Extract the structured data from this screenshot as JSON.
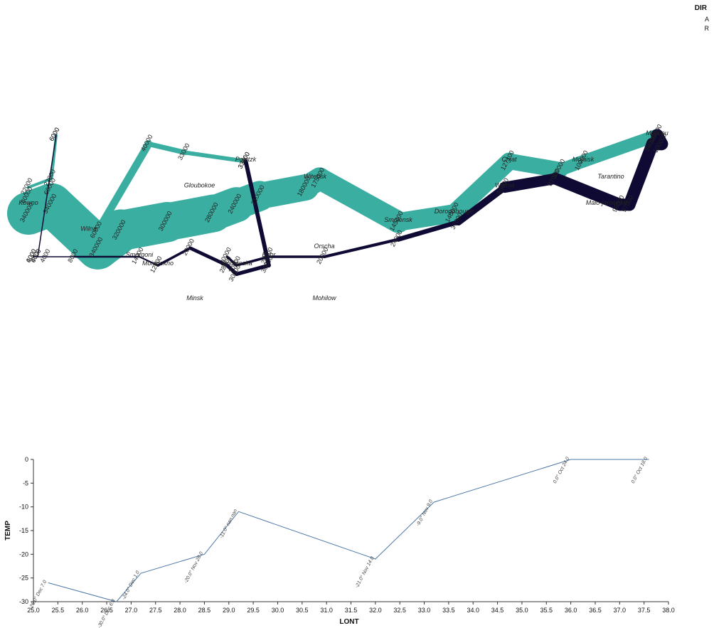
{
  "chart_data": [
    {
      "type": "flow-map",
      "legend": {
        "title": "DIR",
        "items": [
          {
            "label": "A",
            "color": "#3aaea1"
          },
          {
            "label": "R",
            "color": "#0e0a33"
          }
        ]
      },
      "colors": {
        "A": "#3aaea1",
        "R": "#0e0a33"
      },
      "lon_range": [
        24.0,
        37.8
      ],
      "lat_range": [
        53.8,
        55.9
      ],
      "troops": [
        {
          "lon": 24.0,
          "lat": 54.9,
          "survivors": 340000,
          "dir": "A",
          "group": 1
        },
        {
          "lon": 24.5,
          "lat": 55.0,
          "survivors": 340000,
          "dir": "A",
          "group": 1
        },
        {
          "lon": 25.5,
          "lat": 54.5,
          "survivors": 340000,
          "dir": "A",
          "group": 1
        },
        {
          "lon": 26.0,
          "lat": 54.7,
          "survivors": 320000,
          "dir": "A",
          "group": 1
        },
        {
          "lon": 27.0,
          "lat": 54.8,
          "survivors": 300000,
          "dir": "A",
          "group": 1
        },
        {
          "lon": 28.0,
          "lat": 54.9,
          "survivors": 280000,
          "dir": "A",
          "group": 1
        },
        {
          "lon": 28.5,
          "lat": 55.0,
          "survivors": 240000,
          "dir": "A",
          "group": 1
        },
        {
          "lon": 29.0,
          "lat": 55.1,
          "survivors": 210000,
          "dir": "A",
          "group": 1
        },
        {
          "lon": 30.0,
          "lat": 55.2,
          "survivors": 180000,
          "dir": "A",
          "group": 1
        },
        {
          "lon": 30.3,
          "lat": 55.3,
          "survivors": 175000,
          "dir": "A",
          "group": 1
        },
        {
          "lon": 32.0,
          "lat": 54.8,
          "survivors": 145000,
          "dir": "A",
          "group": 1
        },
        {
          "lon": 33.2,
          "lat": 54.9,
          "survivors": 140000,
          "dir": "A",
          "group": 1
        },
        {
          "lon": 34.4,
          "lat": 55.5,
          "survivors": 127100,
          "dir": "A",
          "group": 1
        },
        {
          "lon": 35.5,
          "lat": 55.4,
          "survivors": 100000,
          "dir": "A",
          "group": 1
        },
        {
          "lon": 36.0,
          "lat": 55.5,
          "survivors": 100000,
          "dir": "A",
          "group": 1
        },
        {
          "lon": 37.6,
          "lat": 55.8,
          "survivors": 100000,
          "dir": "R",
          "group": 1
        },
        {
          "lon": 37.7,
          "lat": 55.7,
          "survivors": 100000,
          "dir": "R",
          "group": 1
        },
        {
          "lon": 37.5,
          "lat": 55.7,
          "survivors": 98000,
          "dir": "R",
          "group": 1
        },
        {
          "lon": 37.0,
          "lat": 55.0,
          "survivors": 97000,
          "dir": "R",
          "group": 1
        },
        {
          "lon": 36.8,
          "lat": 55.0,
          "survivors": 96000,
          "dir": "R",
          "group": 1
        },
        {
          "lon": 35.4,
          "lat": 55.3,
          "survivors": 87000,
          "dir": "R",
          "group": 1
        },
        {
          "lon": 34.3,
          "lat": 55.2,
          "survivors": 55000,
          "dir": "R",
          "group": 1
        },
        {
          "lon": 33.3,
          "lat": 54.8,
          "survivors": 37000,
          "dir": "R",
          "group": 1
        },
        {
          "lon": 32.0,
          "lat": 54.6,
          "survivors": 24000,
          "dir": "R",
          "group": 1
        },
        {
          "lon": 30.4,
          "lat": 54.4,
          "survivors": 20000,
          "dir": "R",
          "group": 1
        },
        {
          "lon": 29.2,
          "lat": 54.4,
          "survivors": 20000,
          "dir": "R",
          "group": 1
        },
        {
          "lon": 28.5,
          "lat": 54.3,
          "survivors": 20000,
          "dir": "R",
          "group": 1
        },
        {
          "lon": 28.3,
          "lat": 54.4,
          "survivors": 20000,
          "dir": "R",
          "group": 1
        },
        {
          "lon": 24.0,
          "lat": 55.1,
          "survivors": 60000,
          "dir": "A",
          "group": 2
        },
        {
          "lon": 24.5,
          "lat": 55.2,
          "survivors": 60000,
          "dir": "A",
          "group": 2
        },
        {
          "lon": 25.5,
          "lat": 54.7,
          "survivors": 60000,
          "dir": "A",
          "group": 2
        },
        {
          "lon": 26.6,
          "lat": 55.7,
          "survivors": 40000,
          "dir": "A",
          "group": 2
        },
        {
          "lon": 27.4,
          "lat": 55.6,
          "survivors": 33000,
          "dir": "A",
          "group": 2
        },
        {
          "lon": 28.7,
          "lat": 55.5,
          "survivors": 33000,
          "dir": "A",
          "group": 2
        },
        {
          "lon": 28.7,
          "lat": 55.5,
          "survivors": 33000,
          "dir": "R",
          "group": 2
        },
        {
          "lon": 29.2,
          "lat": 54.3,
          "survivors": 30000,
          "dir": "R",
          "group": 2
        },
        {
          "lon": 28.5,
          "lat": 54.2,
          "survivors": 30000,
          "dir": "R",
          "group": 2
        },
        {
          "lon": 28.3,
          "lat": 54.3,
          "survivors": 28000,
          "dir": "R",
          "group": 2
        },
        {
          "lon": 27.5,
          "lat": 54.5,
          "survivors": 20000,
          "dir": "R",
          "group": 2
        },
        {
          "lon": 26.8,
          "lat": 54.3,
          "survivors": 12000,
          "dir": "R",
          "group": 2
        },
        {
          "lon": 26.4,
          "lat": 54.4,
          "survivors": 14000,
          "dir": "R",
          "group": 2
        },
        {
          "lon": 25.0,
          "lat": 54.4,
          "survivors": 8000,
          "dir": "R",
          "group": 2
        },
        {
          "lon": 24.4,
          "lat": 54.4,
          "survivors": 4000,
          "dir": "R",
          "group": 2
        },
        {
          "lon": 24.2,
          "lat": 54.4,
          "survivors": 4000,
          "dir": "R",
          "group": 2
        },
        {
          "lon": 24.1,
          "lat": 54.4,
          "survivors": 4000,
          "dir": "R",
          "group": 2
        },
        {
          "lon": 24.0,
          "lat": 55.2,
          "survivors": 22000,
          "dir": "A",
          "group": 3
        },
        {
          "lon": 24.5,
          "lat": 55.3,
          "survivors": 22000,
          "dir": "A",
          "group": 3
        },
        {
          "lon": 24.6,
          "lat": 55.8,
          "survivors": 6000,
          "dir": "A",
          "group": 3
        },
        {
          "lon": 24.6,
          "lat": 55.8,
          "survivors": 6000,
          "dir": "R",
          "group": 3
        },
        {
          "lon": 24.2,
          "lat": 54.4,
          "survivors": 6000,
          "dir": "R",
          "group": 3
        },
        {
          "lon": 24.1,
          "lat": 54.4,
          "survivors": 6000,
          "dir": "R",
          "group": 3
        }
      ],
      "cities": [
        {
          "lon": 24.0,
          "lat": 55.0,
          "city": "Kowno"
        },
        {
          "lon": 25.3,
          "lat": 54.7,
          "city": "Wilna"
        },
        {
          "lon": 26.4,
          "lat": 54.4,
          "city": "Smorgoni"
        },
        {
          "lon": 26.8,
          "lat": 54.3,
          "city": "Moiodexno"
        },
        {
          "lon": 27.7,
          "lat": 55.2,
          "city": "Gloubokoe"
        },
        {
          "lon": 27.6,
          "lat": 53.9,
          "city": "Minsk"
        },
        {
          "lon": 28.5,
          "lat": 54.3,
          "city": "Studienska"
        },
        {
          "lon": 28.7,
          "lat": 55.5,
          "city": "Polotzk"
        },
        {
          "lon": 29.2,
          "lat": 54.4,
          "city": "Bobr"
        },
        {
          "lon": 30.2,
          "lat": 55.3,
          "city": "Witebsk"
        },
        {
          "lon": 30.4,
          "lat": 54.5,
          "city": "Orscha"
        },
        {
          "lon": 30.4,
          "lat": 53.9,
          "city": "Mohilow"
        },
        {
          "lon": 32.0,
          "lat": 54.8,
          "city": "Smolensk"
        },
        {
          "lon": 33.2,
          "lat": 54.9,
          "city": "Dorogobouge"
        },
        {
          "lon": 34.3,
          "lat": 55.2,
          "city": "Wixma"
        },
        {
          "lon": 34.4,
          "lat": 55.5,
          "city": "Chjat"
        },
        {
          "lon": 36.0,
          "lat": 55.5,
          "city": "Mojaisk"
        },
        {
          "lon": 37.6,
          "lat": 55.8,
          "city": "Moscou"
        },
        {
          "lon": 36.6,
          "lat": 55.3,
          "city": "Tarantino"
        },
        {
          "lon": 36.5,
          "lat": 55.0,
          "city": "Malo-jarosewli"
        }
      ]
    },
    {
      "type": "line",
      "xlabel": "LONT",
      "ylabel": "TEMP",
      "xlim": [
        25.0,
        38.0
      ],
      "ylim": [
        -30,
        0
      ],
      "xticks": [
        "25.0",
        "25.5",
        "26.0",
        "26.5",
        "27.0",
        "27.5",
        "28.0",
        "28.5",
        "29.0",
        "29.5",
        "30.0",
        "30.5",
        "31.0",
        "31.5",
        "32.0",
        "32.5",
        "33.0",
        "33.5",
        "34.0",
        "34.5",
        "35.0",
        "35.5",
        "36.0",
        "36.5",
        "37.0",
        "37.5",
        "38.0"
      ],
      "yticks": [
        "0",
        "-5",
        "-10",
        "-15",
        "-20",
        "-25",
        "-30"
      ],
      "color": "#4e79a7",
      "points": [
        {
          "x": 37.6,
          "y": 0,
          "label": "0.0° Oct 18.0"
        },
        {
          "x": 36.0,
          "y": 0,
          "label": "0.0° Oct 24.0"
        },
        {
          "x": 33.2,
          "y": -9,
          "label": "-9.0° Nov 9.0"
        },
        {
          "x": 32.0,
          "y": -21,
          "label": "-21.0° Nov 14.0"
        },
        {
          "x": 29.2,
          "y": -11,
          "label": "-11.0° nan nan"
        },
        {
          "x": 28.5,
          "y": -20,
          "label": "-20.0° Nov 28.0"
        },
        {
          "x": 27.2,
          "y": -24,
          "label": "-24.0° Dec 1.0"
        },
        {
          "x": 26.7,
          "y": -30,
          "label": "-30.0° Dec 6.0"
        },
        {
          "x": 25.3,
          "y": -26,
          "label": "-26.0° Dec 7.0"
        }
      ]
    }
  ]
}
